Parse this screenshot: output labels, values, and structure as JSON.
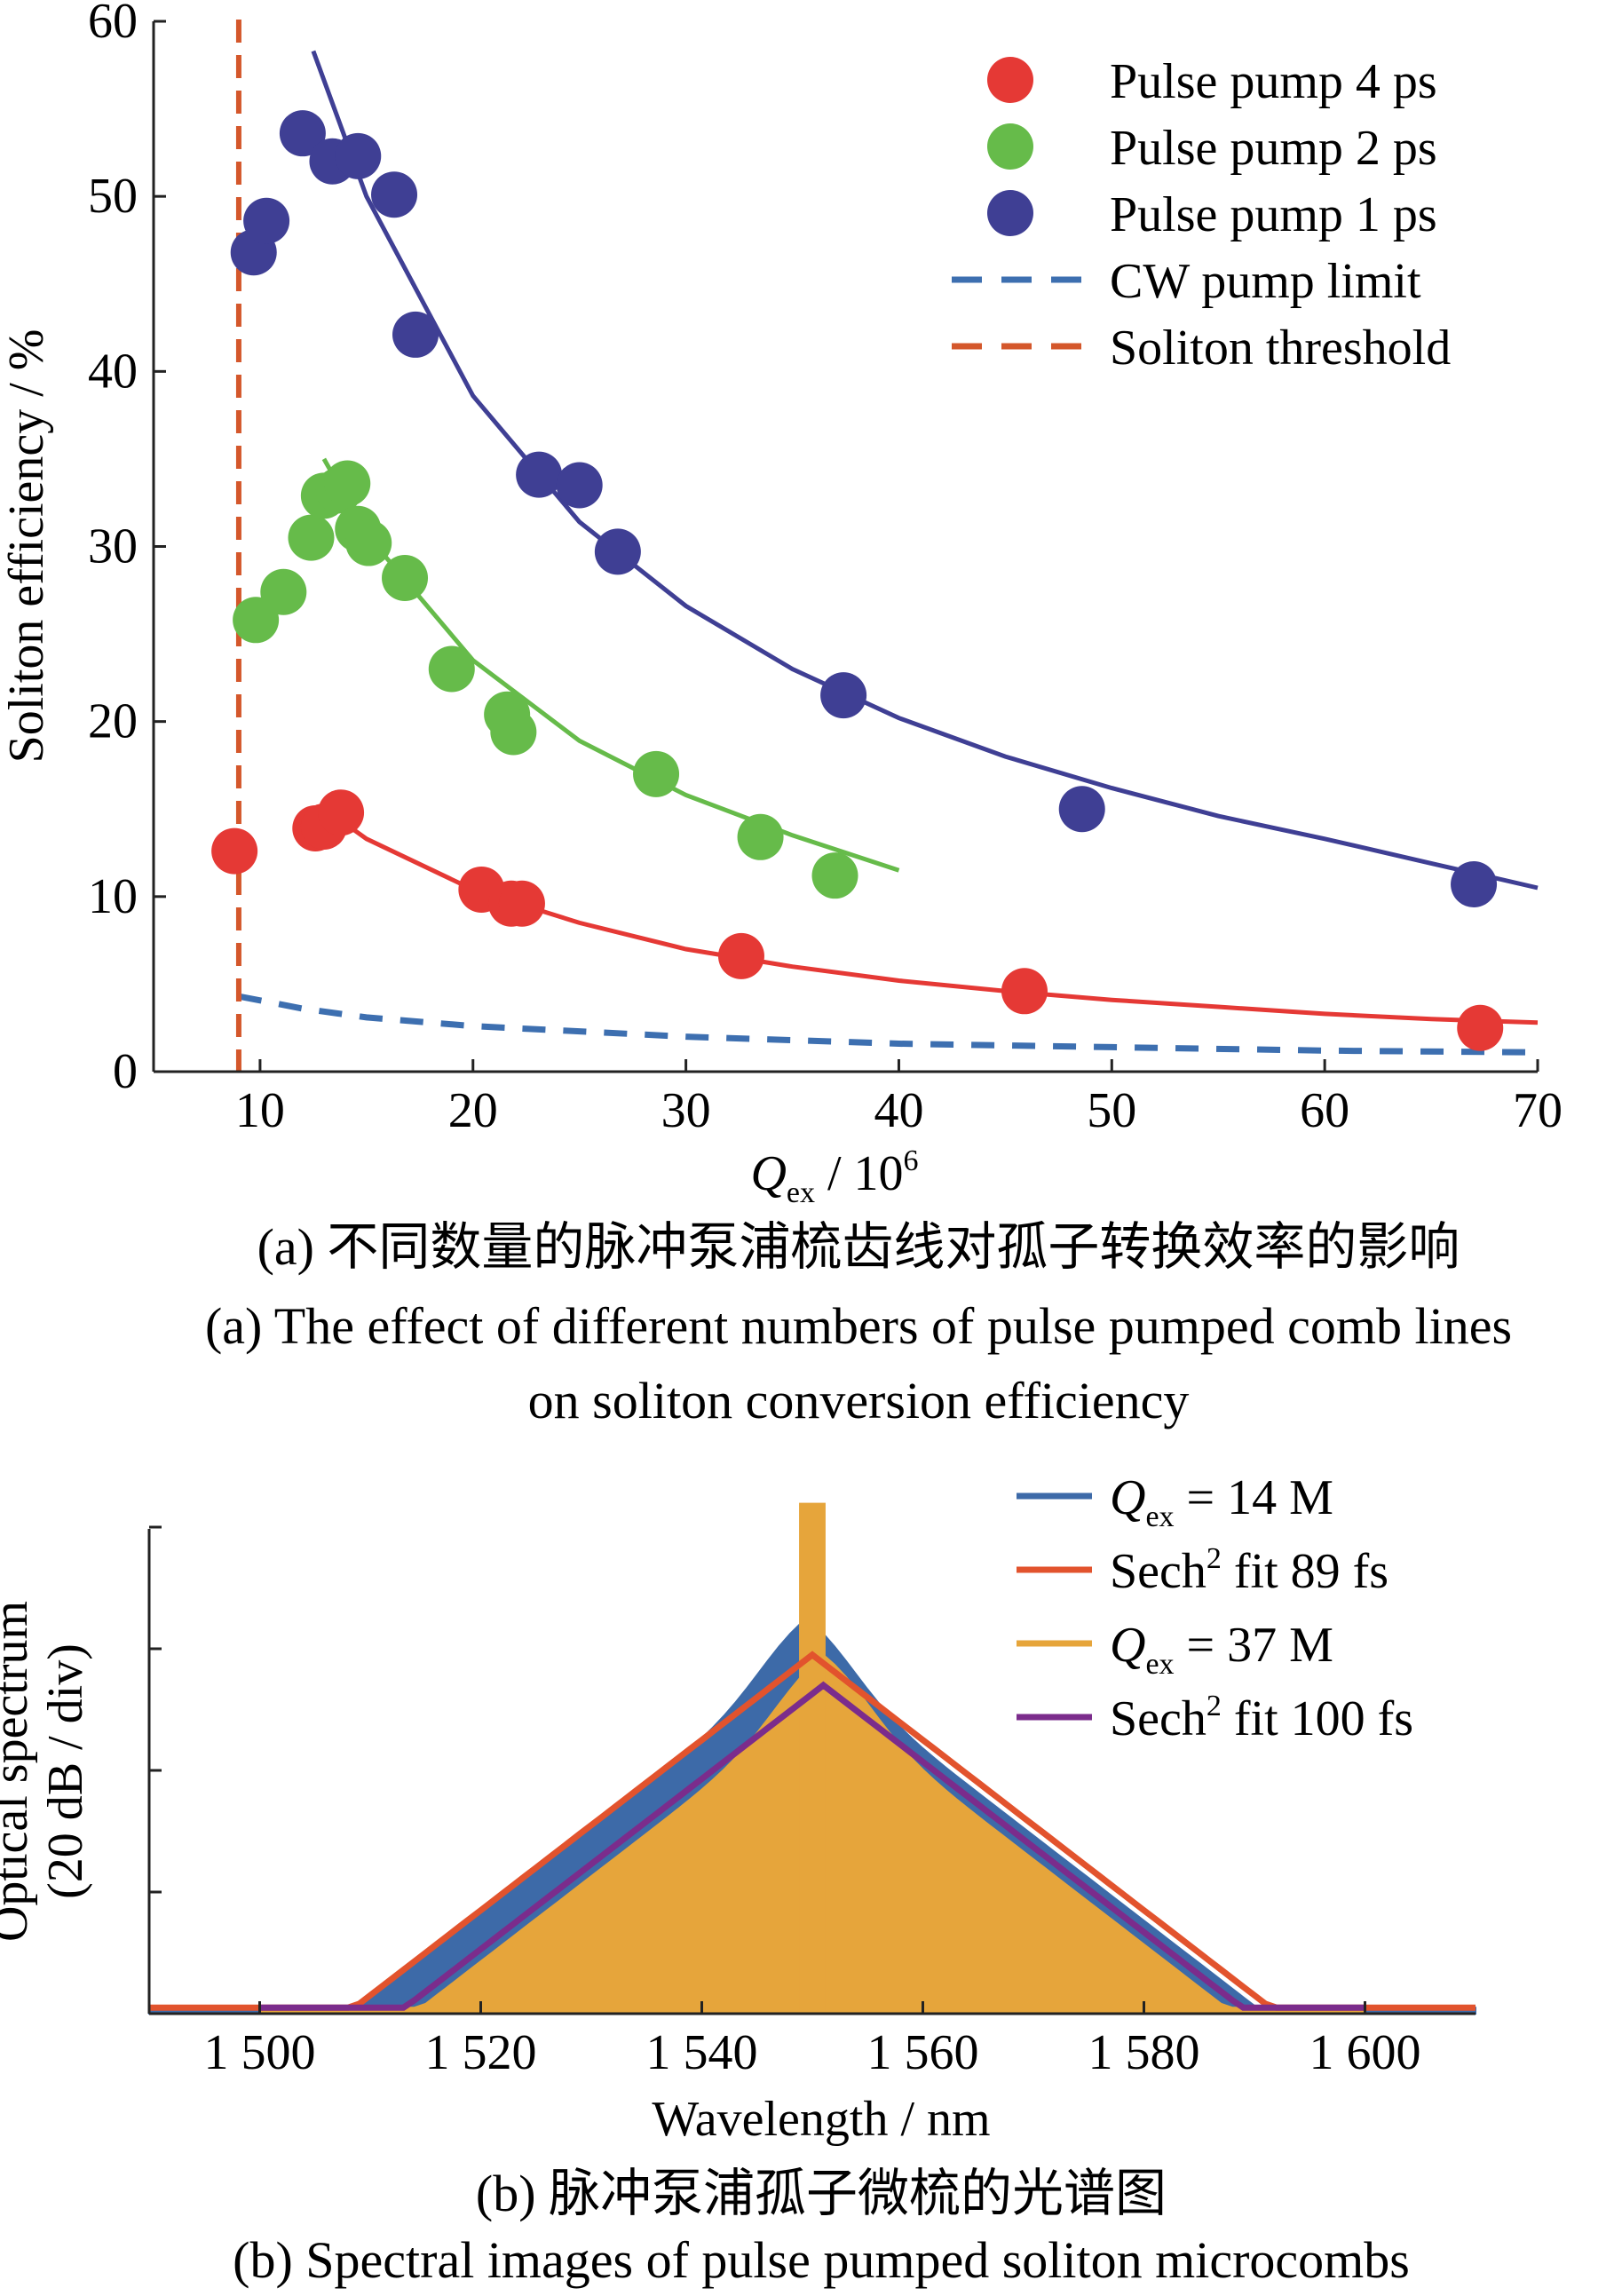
{
  "chart_data": [
    {
      "type": "scatter",
      "ylabel": "Soliton efficiency / %",
      "xlabel_main": "Q",
      "xlabel_sub": "ex",
      "xlabel_rest": " / 10",
      "xlabel_sup": "6",
      "xlim": [
        5,
        70
      ],
      "ylim": [
        0,
        60
      ],
      "xticks": [
        10,
        20,
        30,
        40,
        50,
        60,
        70
      ],
      "yticks": [
        0,
        10,
        20,
        30,
        40,
        50,
        60
      ],
      "legend_position": "top-right",
      "series": [
        {
          "name": "Pulse pump 4 ps",
          "color": "#e53935",
          "points": [
            [
              8.8,
              12.6
            ],
            [
              12.6,
              13.9
            ],
            [
              13.0,
              14.0
            ],
            [
              13.8,
              14.8
            ],
            [
              20.4,
              10.4
            ],
            [
              21.8,
              9.6
            ],
            [
              22.3,
              9.6
            ],
            [
              32.6,
              6.6
            ],
            [
              45.9,
              4.6
            ],
            [
              67.3,
              2.5
            ]
          ],
          "fit": [
            [
              13.5,
              14.6
            ],
            [
              15,
              13.3
            ],
            [
              20,
              10.4
            ],
            [
              25,
              8.5
            ],
            [
              30,
              7.0
            ],
            [
              35,
              6.0
            ],
            [
              40,
              5.2
            ],
            [
              45,
              4.6
            ],
            [
              50,
              4.1
            ],
            [
              55,
              3.7
            ],
            [
              60,
              3.3
            ],
            [
              65,
              3.0
            ],
            [
              70,
              2.8
            ]
          ]
        },
        {
          "name": "Pulse pump 2 ps",
          "color": "#66bb4a",
          "points": [
            [
              9.8,
              25.8
            ],
            [
              11.1,
              27.4
            ],
            [
              12.4,
              30.5
            ],
            [
              13.0,
              32.9
            ],
            [
              13.7,
              33.2
            ],
            [
              14.1,
              33.6
            ],
            [
              14.6,
              31.0
            ],
            [
              15.1,
              30.2
            ],
            [
              16.8,
              28.2
            ],
            [
              19.0,
              23.0
            ],
            [
              21.6,
              20.4
            ],
            [
              21.9,
              19.4
            ],
            [
              28.6,
              17.0
            ],
            [
              33.5,
              13.4
            ],
            [
              37.0,
              11.2
            ]
          ],
          "fit": [
            [
              13.0,
              35.0
            ],
            [
              15,
              30.7
            ],
            [
              20,
              23.5
            ],
            [
              25,
              18.9
            ],
            [
              30,
              15.8
            ],
            [
              35,
              13.5
            ],
            [
              40,
              11.5
            ]
          ]
        },
        {
          "name": "Pulse pump 1 ps",
          "color": "#3f3f94",
          "points": [
            [
              9.7,
              46.8
            ],
            [
              10.3,
              48.6
            ],
            [
              12.0,
              53.6
            ],
            [
              13.4,
              52.0
            ],
            [
              14.6,
              52.3
            ],
            [
              16.3,
              50.1
            ],
            [
              17.3,
              42.1
            ],
            [
              23.1,
              34.1
            ],
            [
              25.0,
              33.5
            ],
            [
              26.8,
              29.7
            ],
            [
              37.4,
              21.5
            ],
            [
              48.6,
              15.0
            ],
            [
              67.0,
              10.7
            ]
          ],
          "fit": [
            [
              12.5,
              58.3
            ],
            [
              15,
              50.0
            ],
            [
              20,
              38.6
            ],
            [
              25,
              31.4
            ],
            [
              30,
              26.6
            ],
            [
              35,
              23.0
            ],
            [
              40,
              20.2
            ],
            [
              45,
              18.0
            ],
            [
              50,
              16.2
            ],
            [
              55,
              14.6
            ],
            [
              60,
              13.3
            ],
            [
              65,
              11.9
            ],
            [
              70,
              10.5
            ]
          ]
        },
        {
          "name": "CW pump limit",
          "color": "#3d6fb0",
          "dashed": true,
          "fit": [
            [
              9,
              4.3
            ],
            [
              12,
              3.6
            ],
            [
              15,
              3.1
            ],
            [
              20,
              2.6
            ],
            [
              30,
              2.0
            ],
            [
              40,
              1.6
            ],
            [
              50,
              1.4
            ],
            [
              60,
              1.2
            ],
            [
              70,
              1.1
            ]
          ]
        },
        {
          "name": "Soliton threshold",
          "color": "#d4572b",
          "dashed": true,
          "vline_x": 9
        }
      ],
      "caption_cn": "(a) 不同数量的脉冲泵浦梳齿线对孤子转换效率的影响",
      "caption_en_1": "(a) The effect of different numbers of pulse pumped comb lines",
      "caption_en_2": "on soliton conversion efficiency"
    },
    {
      "type": "line",
      "ylabel_1": "Optical spectrum",
      "ylabel_2": "(20 dB / div)",
      "xlabel": "Wavelength / nm",
      "xlim": [
        1490,
        1610
      ],
      "xticks": [
        1500,
        1520,
        1540,
        1560,
        1580,
        1600
      ],
      "xtick_labels": [
        "1 500",
        "1 520",
        "1 540",
        "1 560",
        "1 580",
        "1 600"
      ],
      "y_divisions": 4,
      "legend_position": "top-right",
      "series": [
        {
          "name_q": "Q",
          "name_sub": "ex",
          "name_rest": " = 14 M",
          "color": "#3d6aa8",
          "center": 1549.5,
          "peak_div": 2.9,
          "span": [
            1490,
            1610
          ]
        },
        {
          "name_pre": "Sech",
          "name_sup": "2",
          "name_rest": " fit 89 fs",
          "color": "#e2532d",
          "center": 1550,
          "peak_div": 2.95,
          "span": [
            1490,
            1610
          ]
        },
        {
          "name_q": "Q",
          "name_sub": "ex",
          "name_rest": " = 37 M",
          "color": "#e6a53b",
          "center": 1551,
          "peak_div": 2.6,
          "span": [
            1500,
            1600
          ]
        },
        {
          "name_pre": "Sech",
          "name_sup": "2",
          "name_rest": " fit 100 fs",
          "color": "#7b2c8c",
          "center": 1551,
          "peak_div": 2.7,
          "span": [
            1500,
            1600
          ]
        }
      ],
      "caption_cn": "(b) 脉冲泵浦孤子微梳的光谱图",
      "caption_en": "(b) Spectral images of pulse pumped soliton microcombs"
    }
  ]
}
